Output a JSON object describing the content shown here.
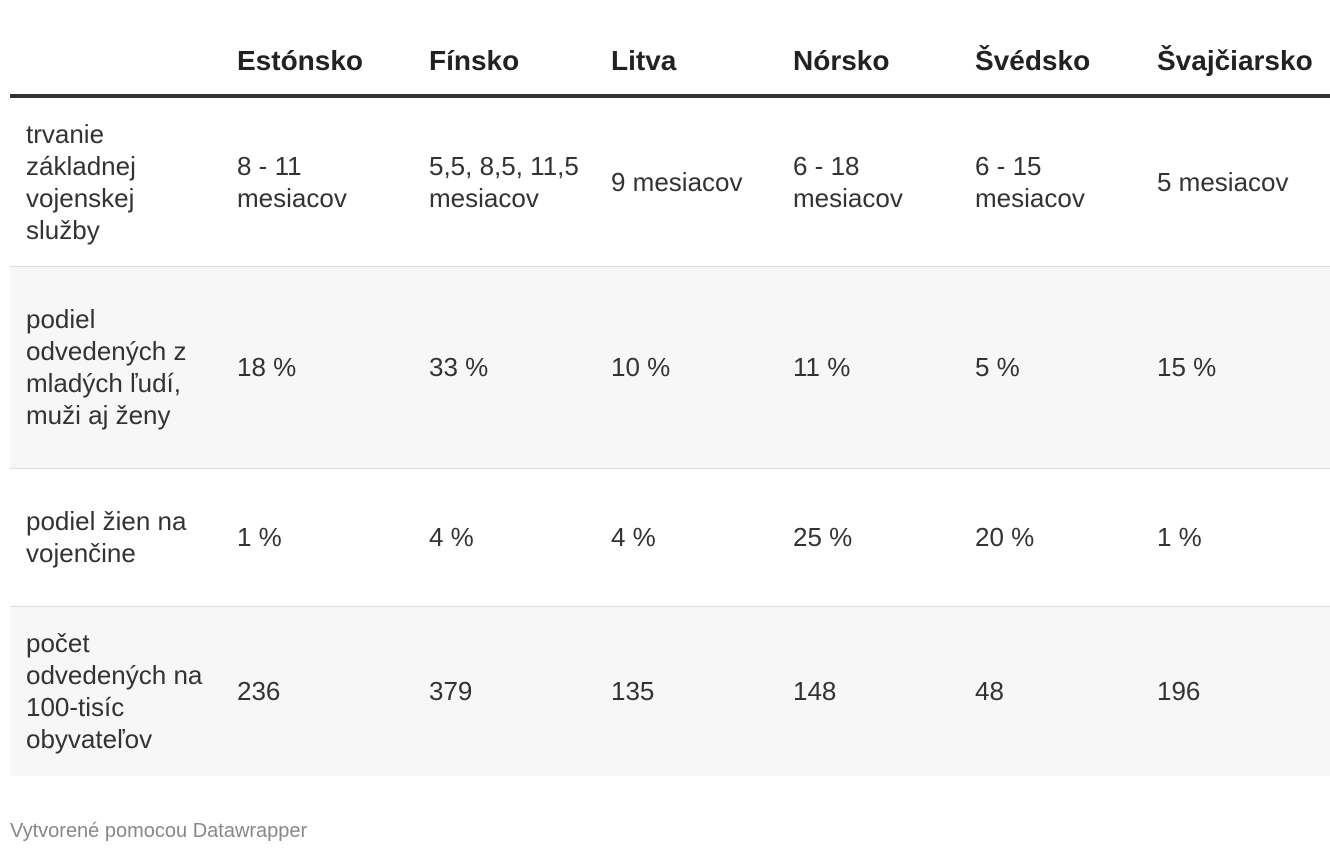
{
  "chart_data": {
    "type": "table",
    "columns": [
      "",
      "Estónsko",
      "Fínsko",
      "Litva",
      "Nórsko",
      "Švédsko",
      "Švajčiarsko"
    ],
    "rows": [
      {
        "label": "trvanie základnej vojenskej služby",
        "values": [
          "8 - 11 mesiacov",
          "5,5, 8,5, 11,5 mesiacov",
          "9 mesiacov",
          "6 - 18 mesiacov",
          "6 - 15 mesiacov",
          "5 mesiacov"
        ]
      },
      {
        "label": "podiel odvedených z mladých ľudí, muži aj ženy",
        "values": [
          "18 %",
          "33 %",
          "10 %",
          "11 %",
          "5 %",
          "15 %"
        ]
      },
      {
        "label": "podiel žien na vojenčine",
        "values": [
          "1 %",
          "4 %",
          "4 %",
          "25 %",
          "20 %",
          "1 %"
        ]
      },
      {
        "label": "počet odvedených na 100-tisíc obyvateľov",
        "values": [
          "236",
          "379",
          "135",
          "148",
          "48",
          "196"
        ]
      }
    ]
  },
  "footer": {
    "credit": "Vytvorené pomocou Datawrapper"
  },
  "colors": {
    "header_rule": "#333333",
    "row_shade": "#f7f7f7",
    "row_divider": "#dddddd",
    "footer_text": "#888888"
  }
}
